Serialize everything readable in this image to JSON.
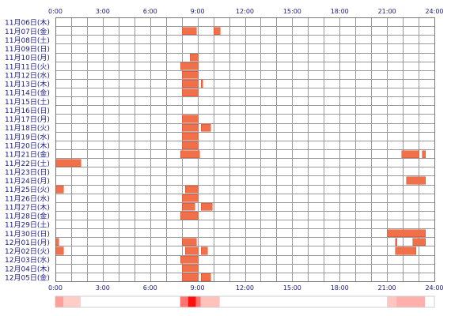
{
  "chart_data": {
    "type": "heatmap",
    "title": "",
    "xlabel": "",
    "ylabel": "",
    "x_ticks": [
      "0:00",
      "3:00",
      "6:00",
      "9:00",
      "12:00",
      "15:00",
      "18:00",
      "21:00",
      "24:00"
    ],
    "x_range_hours": [
      0,
      24
    ],
    "grid": true,
    "rows": [
      {
        "label": "11月06日(木)",
        "spans": []
      },
      {
        "label": "11月07日(金)",
        "spans": [
          [
            8.0,
            8.9
          ],
          [
            10.0,
            10.4
          ]
        ]
      },
      {
        "label": "11月08日(土)",
        "spans": []
      },
      {
        "label": "11月09日(日)",
        "spans": []
      },
      {
        "label": "11月10日(月)",
        "spans": [
          [
            8.5,
            9.0
          ]
        ]
      },
      {
        "label": "11月11日(火)",
        "spans": [
          [
            7.9,
            9.0
          ]
        ]
      },
      {
        "label": "11月12日(水)",
        "spans": [
          [
            8.0,
            9.0
          ]
        ]
      },
      {
        "label": "11月13日(木)",
        "spans": [
          [
            8.0,
            9.0
          ],
          [
            9.2,
            9.3
          ]
        ]
      },
      {
        "label": "11月14日(金)",
        "spans": [
          [
            8.0,
            9.0
          ]
        ]
      },
      {
        "label": "11月15日(土)",
        "spans": []
      },
      {
        "label": "11月16日(日)",
        "spans": []
      },
      {
        "label": "11月17日(月)",
        "spans": [
          [
            8.0,
            9.0
          ]
        ]
      },
      {
        "label": "11月18日(火)",
        "spans": [
          [
            8.0,
            9.0
          ],
          [
            9.2,
            9.8
          ]
        ]
      },
      {
        "label": "11月19日(水)",
        "spans": [
          [
            8.0,
            9.0
          ]
        ]
      },
      {
        "label": "11月20日(木)",
        "spans": [
          [
            8.0,
            9.0
          ]
        ]
      },
      {
        "label": "11月21日(金)",
        "spans": [
          [
            7.9,
            9.1
          ],
          [
            21.9,
            23.0
          ],
          [
            23.2,
            23.4
          ]
        ]
      },
      {
        "label": "11月22日(土)",
        "spans": [
          [
            0.0,
            1.6
          ]
        ]
      },
      {
        "label": "11月23日(日)",
        "spans": []
      },
      {
        "label": "11月24日(月)",
        "spans": [
          [
            22.2,
            23.4
          ]
        ]
      },
      {
        "label": "11月25日(火)",
        "spans": [
          [
            0.0,
            0.5
          ],
          [
            8.2,
            9.0
          ]
        ]
      },
      {
        "label": "11月26日(水)",
        "spans": [
          [
            8.0,
            9.0
          ]
        ]
      },
      {
        "label": "11月27日(木)",
        "spans": [
          [
            8.0,
            8.8
          ],
          [
            9.2,
            9.9
          ]
        ]
      },
      {
        "label": "11月28日(金)",
        "spans": [
          [
            7.9,
            9.0
          ]
        ]
      },
      {
        "label": "11月29日(土)",
        "spans": []
      },
      {
        "label": "11月30日(日)",
        "spans": [
          [
            21.0,
            23.4
          ]
        ]
      },
      {
        "label": "12月01日(月)",
        "spans": [
          [
            0.0,
            0.2
          ],
          [
            8.0,
            8.9
          ],
          [
            21.5,
            21.6
          ],
          [
            22.6,
            23.4
          ]
        ]
      },
      {
        "label": "12月02日(火)",
        "spans": [
          [
            0.0,
            0.5
          ],
          [
            8.2,
            9.0
          ],
          [
            9.2,
            9.6
          ],
          [
            21.5,
            22.8
          ]
        ]
      },
      {
        "label": "12月03日(水)",
        "spans": [
          [
            7.9,
            9.0
          ]
        ]
      },
      {
        "label": "12月04日(木)",
        "spans": [
          [
            8.0,
            9.0
          ]
        ]
      },
      {
        "label": "12月05日(金)",
        "spans": [
          [
            8.0,
            9.0
          ],
          [
            9.2,
            9.8
          ]
        ]
      }
    ],
    "summary_strip": [
      {
        "start": 0.0,
        "end": 0.5,
        "intensity": 0.35
      },
      {
        "start": 0.5,
        "end": 1.6,
        "intensity": 0.15
      },
      {
        "start": 7.9,
        "end": 8.4,
        "intensity": 0.55
      },
      {
        "start": 8.4,
        "end": 8.9,
        "intensity": 1.0
      },
      {
        "start": 8.9,
        "end": 9.2,
        "intensity": 0.55
      },
      {
        "start": 9.2,
        "end": 10.4,
        "intensity": 0.2
      },
      {
        "start": 21.0,
        "end": 21.6,
        "intensity": 0.18
      },
      {
        "start": 21.6,
        "end": 23.4,
        "intensity": 0.28
      }
    ],
    "colors": {
      "bar": "#f0704a",
      "bar_edge": "#e04a2a",
      "grid": "#9a9a9a",
      "text": "#1a1a80",
      "strip_low": "#ffeee8",
      "strip_high": "#ff1010"
    }
  }
}
